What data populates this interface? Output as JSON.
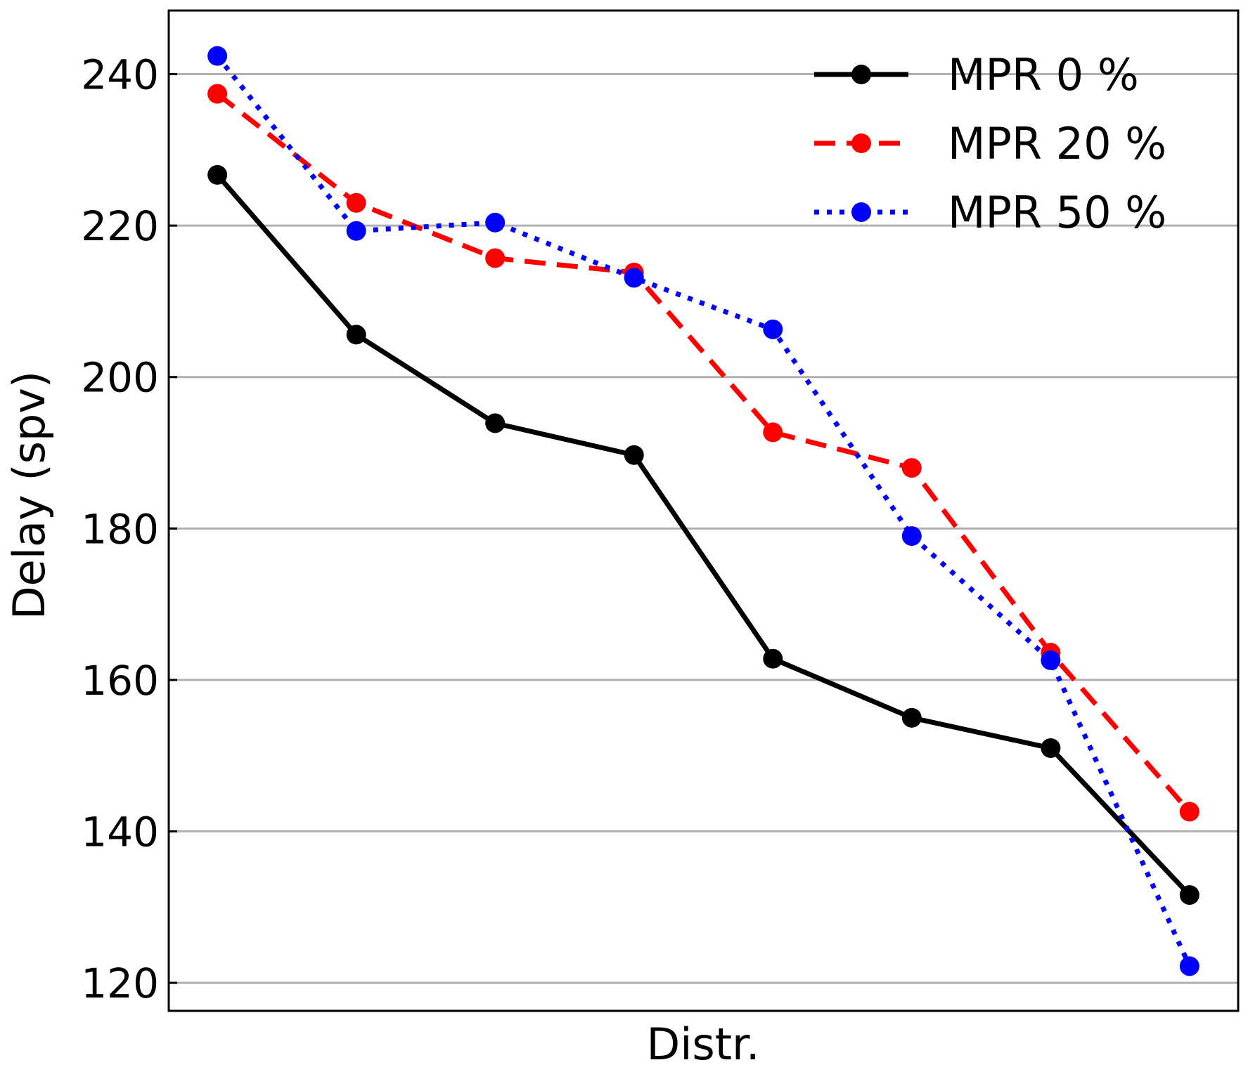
{
  "chart_data": {
    "type": "line",
    "title": "",
    "xlabel": "Distr.",
    "ylabel": "Delay (spv)",
    "x": [
      1,
      2,
      3,
      4,
      5,
      6,
      7,
      8
    ],
    "xlim": [
      0.65,
      8.35
    ],
    "ylim": [
      116.3,
      248.4
    ],
    "yticks": [
      120,
      140,
      160,
      180,
      200,
      220,
      240
    ],
    "grid": "horizontal",
    "legend_position": "top-right",
    "series": [
      {
        "name": "MPR 0 %",
        "color": "#000000",
        "line_style": "solid",
        "marker": "circle",
        "values": [
          226.7,
          205.6,
          193.9,
          189.7,
          162.8,
          155.0,
          151.0,
          131.6
        ]
      },
      {
        "name": "MPR 20 %",
        "color": "#ff0000",
        "line_style": "dashed",
        "marker": "circle",
        "values": [
          237.4,
          223.0,
          215.7,
          213.8,
          192.7,
          188.0,
          163.6,
          142.6
        ]
      },
      {
        "name": "MPR 50 %",
        "color": "#0000ff",
        "line_style": "dotted",
        "marker": "circle",
        "values": [
          242.4,
          219.3,
          220.4,
          213.1,
          206.3,
          179.0,
          162.6,
          122.2
        ]
      }
    ]
  }
}
